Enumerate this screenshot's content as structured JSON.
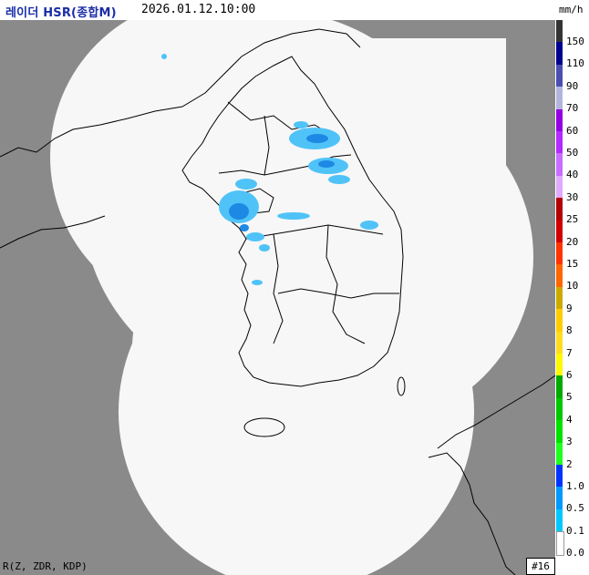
{
  "header": {
    "title": "레이더 HSR(종합M)",
    "timestamp": "2026.01.12.10:00",
    "unit": "mm/h"
  },
  "footer": {
    "variables": "R(Z, ZDR, KDP)",
    "frame_badge": "#16"
  },
  "colors": {
    "title": "#1a2ea8",
    "outside_coverage": "#8a8a8a",
    "coverage": "#f7f7f7",
    "boundary": "#000000",
    "rain_light": "#4fc3f7",
    "rain_mid": "#1e88e5"
  },
  "legend": {
    "labels": [
      "150",
      "110",
      "90",
      "70",
      "60",
      "50",
      "40",
      "30",
      "25",
      "20",
      "15",
      "10",
      "9",
      "8",
      "7",
      "6",
      "5",
      "4",
      "3",
      "2",
      "1.0",
      "0.5",
      "0.1",
      "0.0"
    ],
    "colors": [
      "#333333",
      "#000090",
      "#4c4eb1",
      "#b3b4de",
      "#9300e4",
      "#b329ff",
      "#c96cff",
      "#e0a9ff",
      "#b40000",
      "#d20000",
      "#ff3300",
      "#ff6600",
      "#ccaa00",
      "#ffcc00",
      "#ffdc1f",
      "#fff800",
      "#00aa00",
      "#00c800",
      "#00e100",
      "#1fff1f",
      "#0033ff",
      "#0099ff",
      "#00c8ff",
      "#ffffff"
    ]
  }
}
